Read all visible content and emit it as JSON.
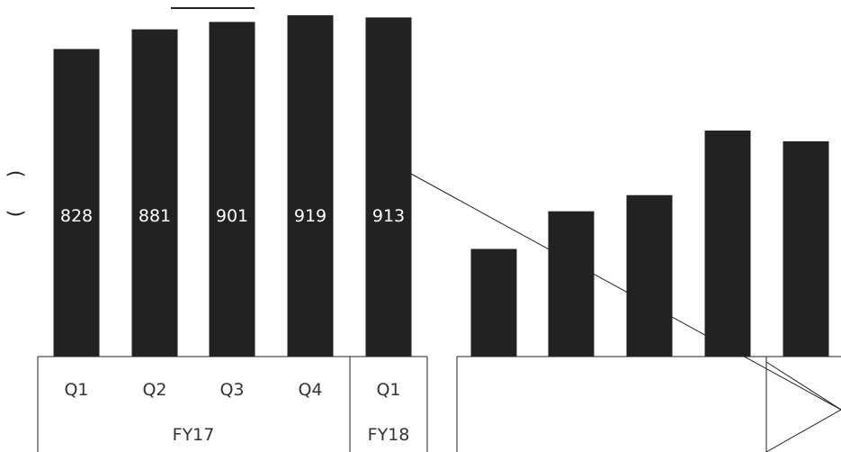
{
  "chart_data": [
    {
      "type": "bar",
      "panel": "left",
      "categories": [
        "Q1",
        "Q2",
        "Q3",
        "Q4",
        "Q1"
      ],
      "groups": [
        {
          "label": "FY17",
          "count": 4
        },
        {
          "label": "FY18",
          "count": 1
        }
      ],
      "values": [
        828,
        881,
        901,
        919,
        913
      ],
      "ylim": [
        0,
        960
      ],
      "bar_color": "#222222"
    },
    {
      "type": "bar",
      "panel": "right",
      "categories": [
        "",
        "",
        "",
        "",
        ""
      ],
      "values": [
        0.8,
        0.87,
        0.9,
        1.02,
        1.0
      ],
      "value_labels_shown": false,
      "bar_color": "#222222"
    }
  ],
  "glyphs": {
    "open_paren": "(",
    "close_paren": ")"
  }
}
